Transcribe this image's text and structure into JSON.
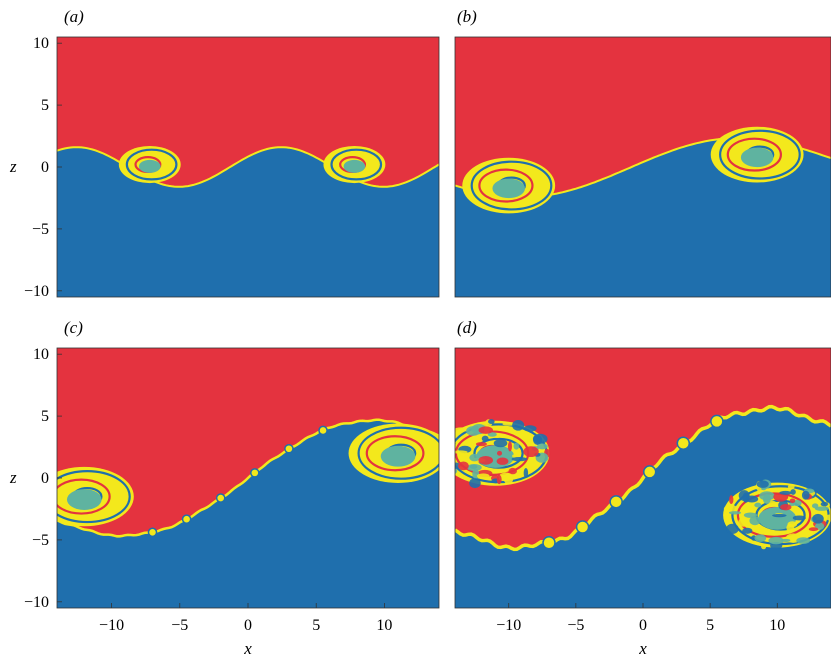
{
  "chart_data": [
    {
      "type": "heatmap",
      "panel_label": "(a)",
      "xlabel": "",
      "ylabel": "z",
      "xlim": [
        -14,
        14
      ],
      "ylim": [
        -10.5,
        10.5
      ],
      "x_ticks": [],
      "y_ticks": [
        -10,
        -5,
        0,
        5,
        10
      ],
      "y_tick_labels": [
        "−10",
        "−5",
        "0",
        "5",
        "10"
      ],
      "interface": {
        "amplitude": 1.6,
        "wavelength": 15,
        "phase": 0.55,
        "slope": 0.0,
        "billow_size": 1.0,
        "turbulence": 0.0
      },
      "vortices": [
        {
          "x": -7.2,
          "z": 0.2,
          "r": 2.0,
          "turns": 2
        },
        {
          "x": 7.8,
          "z": 0.2,
          "r": 2.0,
          "turns": 2
        }
      ]
    },
    {
      "type": "heatmap",
      "panel_label": "(b)",
      "xlabel": "",
      "ylabel": "",
      "xlim": [
        -14,
        14
      ],
      "ylim": [
        -10.5,
        10.5
      ],
      "x_ticks": [],
      "y_ticks": [],
      "interface": {
        "amplitude": 2.0,
        "wavelength": 30,
        "phase": 0.2,
        "slope": 0.05,
        "billow_size": 1.6,
        "turbulence": 0.0
      },
      "vortices": [
        {
          "x": -10.0,
          "z": -1.5,
          "r": 3.0,
          "turns": 3
        },
        {
          "x": 8.5,
          "z": 1.0,
          "r": 3.0,
          "turns": 3
        }
      ]
    },
    {
      "type": "heatmap",
      "panel_label": "(c)",
      "xlabel": "x",
      "ylabel": "z",
      "xlim": [
        -14,
        14
      ],
      "ylim": [
        -10.5,
        10.5
      ],
      "x_ticks": [
        -10,
        -5,
        0,
        5,
        10
      ],
      "x_tick_labels": [
        "−10",
        "−5",
        "0",
        "5",
        "10"
      ],
      "y_ticks": [
        -10,
        -5,
        0,
        5,
        10
      ],
      "y_tick_labels": [
        "−10",
        "−5",
        "0",
        "5",
        "10"
      ],
      "interface": {
        "amplitude": 3.0,
        "wavelength": 30,
        "phase": 0.0,
        "slope": 0.2,
        "billow_size": 1.8,
        "turbulence": 0.35
      },
      "vortices": [
        {
          "x": -12.0,
          "z": -1.5,
          "r": 3.2,
          "turns": 3
        },
        {
          "x": 11.0,
          "z": 2.0,
          "r": 3.2,
          "turns": 3
        }
      ]
    },
    {
      "type": "heatmap",
      "panel_label": "(d)",
      "xlabel": "x",
      "ylabel": "",
      "xlim": [
        -14,
        14
      ],
      "ylim": [
        -10.5,
        10.5
      ],
      "x_ticks": [
        -10,
        -5,
        0,
        5,
        10
      ],
      "x_tick_labels": [
        "−10",
        "−5",
        "0",
        "5",
        "10"
      ],
      "y_ticks": [],
      "interface": {
        "amplitude": 3.5,
        "wavelength": 30,
        "phase": 0.0,
        "slope": 0.25,
        "billow_size": 2.0,
        "turbulence": 1.0
      },
      "vortices": [
        {
          "x": -11.0,
          "z": 2.0,
          "r": 3.5,
          "turns": 4
        },
        {
          "x": 10.0,
          "z": -3.0,
          "r": 3.5,
          "turns": 4
        }
      ]
    }
  ],
  "colors": {
    "upper": "#e4333f",
    "lower": "#1f6fad",
    "mix_yellow": "#f3e81c",
    "mix_teal": "#5fb3a0",
    "axis": "#333333"
  }
}
